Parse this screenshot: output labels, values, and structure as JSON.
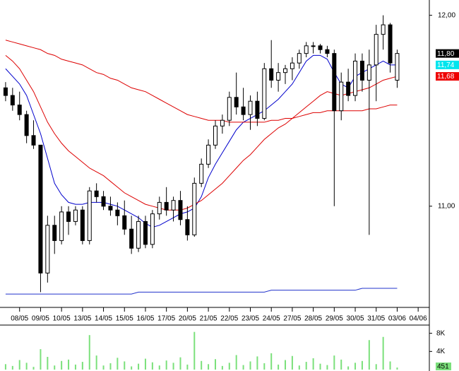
{
  "chart_data": [
    {
      "type": "candlestick",
      "x": [
        0,
        1,
        2,
        3,
        4,
        5,
        6,
        7,
        8,
        9,
        10,
        11,
        12,
        13,
        14,
        15,
        16,
        17,
        18,
        19,
        20,
        21,
        22,
        23,
        24,
        25,
        26,
        27,
        28,
        29,
        30,
        31,
        32,
        33,
        34,
        35,
        36,
        37,
        38,
        39,
        40,
        41,
        42,
        43,
        44,
        45,
        46,
        47,
        48,
        49,
        50,
        51,
        52,
        53,
        54,
        55,
        56
      ],
      "open": [
        11.62,
        11.58,
        11.53,
        11.48,
        11.37,
        11.32,
        10.65,
        10.9,
        10.82,
        10.97,
        10.92,
        10.98,
        10.82,
        11.08,
        11.05,
        11.0,
        10.98,
        10.95,
        10.88,
        10.78,
        10.92,
        10.8,
        10.96,
        11.02,
        10.98,
        11.03,
        10.93,
        10.85,
        11.12,
        11.22,
        11.32,
        11.42,
        11.45,
        11.57,
        11.52,
        11.48,
        11.55,
        11.46,
        11.72,
        11.66,
        11.7,
        11.72,
        11.75,
        11.8,
        11.84,
        11.84,
        11.82,
        11.8,
        11.5,
        11.65,
        11.58,
        11.76,
        11.66,
        11.74,
        11.9,
        11.95,
        11.66
      ],
      "high": [
        11.65,
        11.62,
        11.6,
        11.5,
        11.45,
        11.32,
        10.95,
        10.95,
        11.0,
        11.0,
        11.0,
        11.0,
        11.1,
        11.12,
        11.08,
        11.05,
        11.02,
        11.03,
        10.95,
        10.95,
        10.95,
        10.98,
        11.05,
        11.1,
        11.05,
        11.08,
        11.0,
        11.15,
        11.25,
        11.35,
        11.45,
        11.48,
        11.6,
        11.7,
        11.62,
        11.58,
        11.6,
        11.75,
        11.87,
        11.75,
        11.74,
        11.78,
        11.82,
        11.86,
        11.86,
        11.85,
        11.84,
        11.82,
        11.7,
        11.72,
        11.8,
        11.8,
        11.82,
        11.95,
        12.0,
        11.96,
        11.82
      ],
      "low": [
        11.55,
        11.5,
        11.45,
        11.33,
        11.3,
        10.55,
        10.6,
        10.75,
        10.8,
        10.85,
        10.9,
        10.8,
        10.8,
        11.02,
        10.98,
        10.95,
        10.9,
        10.85,
        10.75,
        10.76,
        10.78,
        10.78,
        10.93,
        10.95,
        10.92,
        10.9,
        10.82,
        10.84,
        11.1,
        11.2,
        11.3,
        11.38,
        11.42,
        11.48,
        11.45,
        11.4,
        11.42,
        11.45,
        11.62,
        11.6,
        11.64,
        11.66,
        11.72,
        11.78,
        11.8,
        11.8,
        11.78,
        11.0,
        11.45,
        11.55,
        11.55,
        11.6,
        10.85,
        11.55,
        11.82,
        11.7,
        11.62
      ],
      "close": [
        11.58,
        11.53,
        11.48,
        11.37,
        11.32,
        10.65,
        10.9,
        10.82,
        10.97,
        10.92,
        10.98,
        10.82,
        11.08,
        11.05,
        11.0,
        10.98,
        10.95,
        10.88,
        10.78,
        10.92,
        10.8,
        10.96,
        11.02,
        10.98,
        11.03,
        10.93,
        10.85,
        11.12,
        11.22,
        11.32,
        11.42,
        11.45,
        11.57,
        11.52,
        11.48,
        11.55,
        11.46,
        11.72,
        11.66,
        11.7,
        11.72,
        11.75,
        11.8,
        11.84,
        11.84,
        11.82,
        11.8,
        11.5,
        11.65,
        11.58,
        11.76,
        11.66,
        11.74,
        11.9,
        11.95,
        11.75,
        11.8
      ],
      "series": [
        {
          "color": "#0000cc",
          "values": [
            11.72,
            11.68,
            11.64,
            11.58,
            11.48,
            11.38,
            11.25,
            11.12,
            11.06,
            11.02,
            11.01,
            11.01,
            11.02,
            11.02,
            11.02,
            11.01,
            11.0,
            10.98,
            10.96,
            10.94,
            10.91,
            10.89,
            10.9,
            10.92,
            10.94,
            10.96,
            10.97,
            10.99,
            11.05,
            11.15,
            11.22,
            11.28,
            11.34,
            11.4,
            11.44,
            11.46,
            11.48,
            11.5,
            11.53,
            11.56,
            11.6,
            11.64,
            11.7,
            11.76,
            11.79,
            11.79,
            11.77,
            11.7,
            11.64,
            11.62,
            11.68,
            11.7,
            11.72,
            11.74,
            11.76,
            11.74,
            11.74
          ]
        },
        {
          "color": "#dd0000",
          "values": [
            11.79,
            11.76,
            11.72,
            11.66,
            11.6,
            11.52,
            11.44,
            11.38,
            11.33,
            11.29,
            11.26,
            11.23,
            11.2,
            11.18,
            11.16,
            11.13,
            11.1,
            11.07,
            11.05,
            11.03,
            11.01,
            11.0,
            10.99,
            10.98,
            10.98,
            10.98,
            10.99,
            11.01,
            11.03,
            11.06,
            11.09,
            11.12,
            11.16,
            11.2,
            11.24,
            11.27,
            11.31,
            11.35,
            11.38,
            11.41,
            11.43,
            11.46,
            11.49,
            11.52,
            11.55,
            11.58,
            11.6,
            11.59,
            11.58,
            11.59,
            11.6,
            11.61,
            11.62,
            11.64,
            11.66,
            11.67,
            11.68
          ]
        },
        {
          "color": "#dd0000",
          "values": [
            11.87,
            11.86,
            11.85,
            11.84,
            11.83,
            11.82,
            11.8,
            11.79,
            11.77,
            11.76,
            11.75,
            11.74,
            11.72,
            11.7,
            11.69,
            11.67,
            11.66,
            11.64,
            11.62,
            11.61,
            11.6,
            11.58,
            11.56,
            11.54,
            11.52,
            11.5,
            11.48,
            11.47,
            11.46,
            11.45,
            11.45,
            11.45,
            11.44,
            11.44,
            11.44,
            11.44,
            11.44,
            11.44,
            11.45,
            11.45,
            11.46,
            11.46,
            11.47,
            11.48,
            11.49,
            11.49,
            11.5,
            11.5,
            11.5,
            11.5,
            11.5,
            11.5,
            11.51,
            11.51,
            11.52,
            11.53,
            11.53
          ]
        },
        {
          "color": "#2233cc",
          "values": [
            10.54,
            10.54,
            10.54,
            10.54,
            10.54,
            10.54,
            10.54,
            10.54,
            10.54,
            10.54,
            10.54,
            10.54,
            10.54,
            10.54,
            10.54,
            10.54,
            10.54,
            10.54,
            10.54,
            10.55,
            10.55,
            10.55,
            10.55,
            10.55,
            10.55,
            10.55,
            10.55,
            10.55,
            10.55,
            10.55,
            10.55,
            10.55,
            10.55,
            10.55,
            10.55,
            10.55,
            10.55,
            10.55,
            10.56,
            10.56,
            10.56,
            10.56,
            10.56,
            10.56,
            10.56,
            10.56,
            10.56,
            10.56,
            10.56,
            10.56,
            10.56,
            10.57,
            10.57,
            10.57,
            10.57,
            10.57,
            10.57
          ]
        }
      ],
      "annotations": [
        {
          "value": 11.8,
          "label": "11,80",
          "color": "#000000",
          "text_color": "#ffffff"
        },
        {
          "value": 11.74,
          "label": "11,74",
          "color": "#00e5ee",
          "text_color": "#ffffff"
        },
        {
          "value": 11.68,
          "label": "11,68",
          "color": "#ee0000",
          "text_color": "#ffffff"
        }
      ],
      "xlim": [
        -0.8,
        60.6
      ],
      "xticks": [
        {
          "value": 2,
          "label": "08/05"
        },
        {
          "value": 5,
          "label": "09/05"
        },
        {
          "value": 8,
          "label": "10/05"
        },
        {
          "value": 11,
          "label": "13/05"
        },
        {
          "value": 14,
          "label": "14/05"
        },
        {
          "value": 17,
          "label": "15/05"
        },
        {
          "value": 20,
          "label": "16/05"
        },
        {
          "value": 23,
          "label": "17/05"
        },
        {
          "value": 26,
          "label": "20/05"
        },
        {
          "value": 29,
          "label": "21/05"
        },
        {
          "value": 32,
          "label": "22/05"
        },
        {
          "value": 35,
          "label": "23/05"
        },
        {
          "value": 38,
          "label": "24/05"
        },
        {
          "value": 41,
          "label": "27/05"
        },
        {
          "value": 44,
          "label": "28/05"
        },
        {
          "value": 47,
          "label": "29/05"
        },
        {
          "value": 50,
          "label": "30/05"
        },
        {
          "value": 53,
          "label": "31/05"
        },
        {
          "value": 56,
          "label": "03/06"
        },
        {
          "value": 59,
          "label": "04/06"
        }
      ],
      "ylim": [
        10.47,
        12.08
      ],
      "yticks": [
        {
          "value": 12,
          "label": "12,00"
        },
        {
          "value": 11,
          "label": "11,00"
        }
      ],
      "up_color": "#ffffff",
      "down_color": "#000000",
      "grid": false
    },
    {
      "type": "bar",
      "color": "#7be07b",
      "values": [
        1200,
        800,
        2100,
        1500,
        600,
        4500,
        2800,
        900,
        1900,
        2200,
        1100,
        1700,
        7600,
        3100,
        900,
        1400,
        2600,
        1800,
        700,
        1300,
        2400,
        1600,
        900,
        2000,
        1500,
        2700,
        1100,
        8300,
        1900,
        1200,
        2300,
        800,
        1500,
        3200,
        1000,
        1800,
        2900,
        1400,
        3600,
        1100,
        2100,
        3000,
        900,
        1700,
        2500,
        1300,
        1000,
        3100,
        2200,
        700,
        1500,
        1900,
        6500,
        1200,
        7200,
        1800,
        451
      ],
      "ylim": [
        0,
        9500
      ],
      "yticks": [
        {
          "value": 8000,
          "label": "8K"
        },
        {
          "value": 4000,
          "label": "4K"
        }
      ],
      "grid": false
    }
  ]
}
